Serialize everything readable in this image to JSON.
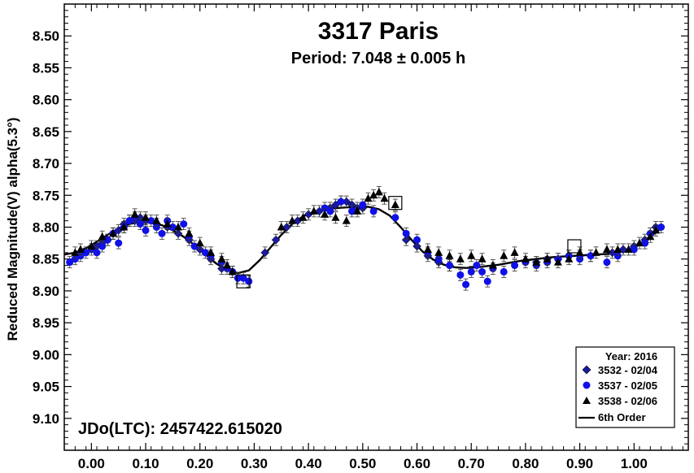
{
  "chart_data": {
    "type": "scatter",
    "title": "3317 Paris",
    "subtitle": "Period: 7.048 ± 0.005 h",
    "ylabel": "Reduced Magnitude(V) alpha(5.3°)",
    "annotation": "JDo(LTC): 2457422.615020",
    "xlim": [
      -0.05,
      1.1
    ],
    "ylim": [
      9.15,
      8.45
    ],
    "y_inverted": true,
    "x_ticks": [
      "0.00",
      "0.10",
      "0.20",
      "0.30",
      "0.40",
      "0.50",
      "0.60",
      "0.70",
      "0.80",
      "0.90",
      "1.00"
    ],
    "y_ticks": [
      "8.50",
      "8.55",
      "8.60",
      "8.65",
      "8.70",
      "8.75",
      "8.80",
      "8.85",
      "8.90",
      "8.95",
      "9.00",
      "9.05",
      "9.10"
    ],
    "legend": {
      "title": "Year: 2016",
      "placement": "bottom-right",
      "entries": [
        "3532 - 02/04",
        "3537 - 02/05",
        "3538 - 02/06",
        "6th Order"
      ]
    },
    "series": [
      {
        "name": "3532 - 02/04",
        "marker": "diamond",
        "color": "#1a1aa0",
        "points": [
          [
            0.01,
            8.83
          ],
          [
            0.02,
            8.825
          ],
          [
            0.03,
            8.82
          ],
          [
            0.04,
            8.81
          ],
          [
            0.05,
            8.805
          ],
          [
            0.06,
            8.795
          ],
          [
            0.07,
            8.79
          ],
          [
            0.08,
            8.79
          ],
          [
            0.09,
            8.785
          ],
          [
            0.1,
            8.79
          ],
          [
            0.12,
            8.795
          ],
          [
            0.14,
            8.8
          ],
          [
            0.16,
            8.81
          ],
          [
            0.18,
            8.82
          ],
          [
            0.2,
            8.835
          ],
          [
            0.22,
            8.85
          ],
          [
            0.24,
            8.865
          ],
          [
            0.32,
            8.84
          ],
          [
            0.34,
            8.82
          ],
          [
            0.36,
            8.8
          ],
          [
            0.38,
            8.79
          ],
          [
            0.4,
            8.78
          ],
          [
            0.42,
            8.775
          ],
          [
            0.44,
            8.77
          ],
          [
            0.45,
            8.765
          ],
          [
            0.46,
            8.76
          ],
          [
            0.47,
            8.76
          ],
          [
            0.48,
            8.765
          ],
          [
            0.49,
            8.77
          ],
          [
            0.5,
            8.77
          ],
          [
            0.58,
            8.82
          ],
          [
            0.6,
            8.83
          ],
          [
            0.62,
            8.845
          ],
          [
            0.64,
            8.855
          ],
          [
            0.66,
            8.86
          ],
          [
            0.82,
            8.855
          ],
          [
            0.84,
            8.85
          ],
          [
            0.86,
            8.85
          ],
          [
            0.88,
            8.845
          ],
          [
            0.9,
            8.845
          ],
          [
            0.92,
            8.845
          ],
          [
            0.96,
            8.84
          ],
          [
            0.98,
            8.835
          ],
          [
            1.0,
            8.83
          ],
          [
            1.02,
            8.82
          ],
          [
            1.03,
            8.81
          ],
          [
            1.04,
            8.8
          ]
        ]
      },
      {
        "name": "3537 - 02/05",
        "marker": "circle",
        "color": "#1010e8",
        "points": [
          [
            -0.04,
            8.855
          ],
          [
            -0.03,
            8.85
          ],
          [
            -0.02,
            8.845
          ],
          [
            -0.01,
            8.84
          ],
          [
            0.0,
            8.835
          ],
          [
            0.01,
            8.84
          ],
          [
            0.02,
            8.83
          ],
          [
            0.03,
            8.82
          ],
          [
            0.04,
            8.81
          ],
          [
            0.05,
            8.825
          ],
          [
            0.06,
            8.8
          ],
          [
            0.07,
            8.79
          ],
          [
            0.08,
            8.785
          ],
          [
            0.09,
            8.795
          ],
          [
            0.1,
            8.805
          ],
          [
            0.11,
            8.79
          ],
          [
            0.12,
            8.8
          ],
          [
            0.13,
            8.81
          ],
          [
            0.14,
            8.79
          ],
          [
            0.15,
            8.8
          ],
          [
            0.17,
            8.795
          ],
          [
            0.18,
            8.815
          ],
          [
            0.19,
            8.83
          ],
          [
            0.21,
            8.84
          ],
          [
            0.22,
            8.845
          ],
          [
            0.24,
            8.855
          ],
          [
            0.25,
            8.865
          ],
          [
            0.26,
            8.87
          ],
          [
            0.27,
            8.88
          ],
          [
            0.28,
            8.88
          ],
          [
            0.29,
            8.885
          ],
          [
            0.43,
            8.77
          ],
          [
            0.44,
            8.775
          ],
          [
            0.46,
            8.76
          ],
          [
            0.48,
            8.775
          ],
          [
            0.5,
            8.765
          ],
          [
            0.52,
            8.775
          ],
          [
            0.56,
            8.785
          ],
          [
            0.58,
            8.81
          ],
          [
            0.6,
            8.82
          ],
          [
            0.62,
            8.84
          ],
          [
            0.64,
            8.85
          ],
          [
            0.66,
            8.86
          ],
          [
            0.68,
            8.875
          ],
          [
            0.69,
            8.89
          ],
          [
            0.7,
            8.87
          ],
          [
            0.71,
            8.86
          ],
          [
            0.72,
            8.87
          ],
          [
            0.73,
            8.885
          ],
          [
            0.74,
            8.865
          ],
          [
            0.76,
            8.87
          ],
          [
            0.78,
            8.86
          ],
          [
            0.8,
            8.855
          ],
          [
            0.82,
            8.86
          ],
          [
            0.84,
            8.855
          ],
          [
            0.86,
            8.85
          ],
          [
            0.88,
            8.845
          ],
          [
            0.9,
            8.85
          ],
          [
            0.92,
            8.845
          ],
          [
            0.95,
            8.855
          ],
          [
            0.97,
            8.845
          ],
          [
            1.0,
            8.835
          ],
          [
            1.02,
            8.825
          ],
          [
            1.03,
            8.81
          ],
          [
            1.05,
            8.8
          ]
        ]
      },
      {
        "name": "3538 - 02/06",
        "marker": "triangle",
        "color": "#000000",
        "points": [
          [
            -0.03,
            8.84
          ],
          [
            -0.02,
            8.835
          ],
          [
            0.0,
            8.83
          ],
          [
            0.02,
            8.815
          ],
          [
            0.04,
            8.81
          ],
          [
            0.06,
            8.8
          ],
          [
            0.08,
            8.78
          ],
          [
            0.1,
            8.785
          ],
          [
            0.12,
            8.79
          ],
          [
            0.14,
            8.795
          ],
          [
            0.16,
            8.8
          ],
          [
            0.18,
            8.81
          ],
          [
            0.2,
            8.825
          ],
          [
            0.22,
            8.84
          ],
          [
            0.24,
            8.85
          ],
          [
            0.25,
            8.86
          ],
          [
            0.26,
            8.87
          ],
          [
            0.35,
            8.8
          ],
          [
            0.37,
            8.79
          ],
          [
            0.39,
            8.785
          ],
          [
            0.41,
            8.775
          ],
          [
            0.43,
            8.78
          ],
          [
            0.45,
            8.785
          ],
          [
            0.47,
            8.79
          ],
          [
            0.49,
            8.775
          ],
          [
            0.51,
            8.755
          ],
          [
            0.52,
            8.75
          ],
          [
            0.53,
            8.745
          ],
          [
            0.54,
            8.755
          ],
          [
            0.56,
            8.765
          ],
          [
            0.62,
            8.835
          ],
          [
            0.64,
            8.84
          ],
          [
            0.66,
            8.845
          ],
          [
            0.68,
            8.85
          ],
          [
            0.7,
            8.845
          ],
          [
            0.72,
            8.85
          ],
          [
            0.74,
            8.86
          ],
          [
            0.76,
            8.845
          ],
          [
            0.78,
            8.84
          ],
          [
            0.8,
            8.85
          ],
          [
            0.82,
            8.855
          ],
          [
            0.84,
            8.85
          ],
          [
            0.86,
            8.855
          ],
          [
            0.88,
            8.85
          ],
          [
            0.9,
            8.84
          ],
          [
            0.93,
            8.84
          ],
          [
            0.95,
            8.835
          ],
          [
            0.97,
            8.835
          ],
          [
            0.99,
            8.835
          ],
          [
            1.01,
            8.825
          ],
          [
            1.03,
            8.815
          ],
          [
            1.04,
            8.805
          ]
        ]
      }
    ],
    "fit": {
      "name": "6th Order",
      "points": [
        [
          -0.05,
          8.843
        ],
        [
          -0.03,
          8.84
        ],
        [
          -0.01,
          8.833
        ],
        [
          0.01,
          8.823
        ],
        [
          0.03,
          8.812
        ],
        [
          0.05,
          8.802
        ],
        [
          0.07,
          8.795
        ],
        [
          0.09,
          8.792
        ],
        [
          0.11,
          8.793
        ],
        [
          0.13,
          8.797
        ],
        [
          0.15,
          8.805
        ],
        [
          0.17,
          8.815
        ],
        [
          0.19,
          8.828
        ],
        [
          0.21,
          8.843
        ],
        [
          0.23,
          8.857
        ],
        [
          0.25,
          8.867
        ],
        [
          0.27,
          8.872
        ],
        [
          0.29,
          8.868
        ],
        [
          0.31,
          8.852
        ],
        [
          0.33,
          8.832
        ],
        [
          0.35,
          8.812
        ],
        [
          0.37,
          8.795
        ],
        [
          0.39,
          8.783
        ],
        [
          0.41,
          8.776
        ],
        [
          0.43,
          8.772
        ],
        [
          0.45,
          8.77
        ],
        [
          0.47,
          8.769
        ],
        [
          0.49,
          8.768
        ],
        [
          0.51,
          8.768
        ],
        [
          0.53,
          8.772
        ],
        [
          0.55,
          8.782
        ],
        [
          0.57,
          8.8
        ],
        [
          0.59,
          8.82
        ],
        [
          0.61,
          8.838
        ],
        [
          0.63,
          8.851
        ],
        [
          0.65,
          8.859
        ],
        [
          0.67,
          8.863
        ],
        [
          0.69,
          8.864
        ],
        [
          0.71,
          8.863
        ],
        [
          0.73,
          8.861
        ],
        [
          0.75,
          8.859
        ],
        [
          0.77,
          8.856
        ],
        [
          0.79,
          8.853
        ],
        [
          0.81,
          8.851
        ],
        [
          0.83,
          8.849
        ],
        [
          0.85,
          8.847
        ],
        [
          0.87,
          8.846
        ],
        [
          0.89,
          8.845
        ],
        [
          0.91,
          8.844
        ],
        [
          0.93,
          8.843
        ],
        [
          0.95,
          8.842
        ],
        [
          0.97,
          8.84
        ],
        [
          0.99,
          8.835
        ],
        [
          1.01,
          8.827
        ],
        [
          1.03,
          8.815
        ],
        [
          1.05,
          8.802
        ]
      ]
    },
    "highlighted_points": [
      [
        0.28,
        8.885
      ],
      [
        0.56,
        8.762
      ],
      [
        0.89,
        8.83
      ]
    ]
  }
}
